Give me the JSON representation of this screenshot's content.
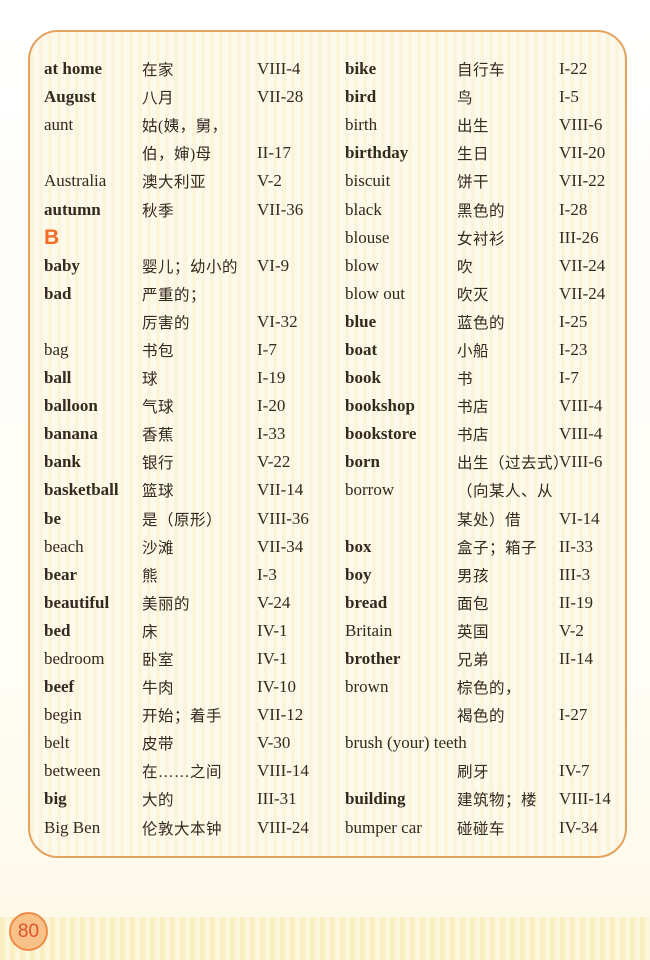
{
  "page": {
    "number": "80"
  },
  "colors": {
    "card_border": "#e2a361",
    "card_background": "#fcf6e3",
    "section_letter": "#f26c27",
    "text": "#332a20",
    "badge_border": "#ec8d49",
    "badge_fill": "#f7c187",
    "badge_text": "#e0532b"
  },
  "glossary": {
    "left_column": {
      "rows": [
        {
          "type": "entry",
          "en": "at home",
          "en_bold": true,
          "zh": "在家",
          "code": "VIII-4"
        },
        {
          "type": "entry",
          "en": "August",
          "en_bold": true,
          "zh": "八月",
          "code": "VII-28"
        },
        {
          "type": "entry",
          "en": "aunt",
          "en_bold": false,
          "zh": "姑(姨，舅，",
          "code": ""
        },
        {
          "type": "entry",
          "en": "",
          "en_bold": false,
          "zh": "伯，婶)母",
          "code": "II-17"
        },
        {
          "type": "entry",
          "en": "Australia",
          "en_bold": false,
          "zh": "澳大利亚",
          "code": "V-2"
        },
        {
          "type": "entry",
          "en": "autumn",
          "en_bold": true,
          "zh": "秋季",
          "code": "VII-36"
        },
        {
          "type": "section",
          "letter": "B"
        },
        {
          "type": "entry",
          "en": "baby",
          "en_bold": true,
          "zh": "婴儿；幼小的",
          "code": "VI-9"
        },
        {
          "type": "entry",
          "en": "bad",
          "en_bold": true,
          "zh": "严重的；",
          "code": ""
        },
        {
          "type": "entry",
          "en": "",
          "en_bold": false,
          "zh": "厉害的",
          "code": "VI-32"
        },
        {
          "type": "entry",
          "en": "bag",
          "en_bold": false,
          "zh": "书包",
          "code": "I-7"
        },
        {
          "type": "entry",
          "en": "ball",
          "en_bold": true,
          "zh": "球",
          "code": "I-19"
        },
        {
          "type": "entry",
          "en": "balloon",
          "en_bold": true,
          "zh": "气球",
          "code": "I-20"
        },
        {
          "type": "entry",
          "en": "banana",
          "en_bold": true,
          "zh": "香蕉",
          "code": "I-33"
        },
        {
          "type": "entry",
          "en": "bank",
          "en_bold": true,
          "zh": "银行",
          "code": "V-22"
        },
        {
          "type": "entry",
          "en": "basketball",
          "en_bold": true,
          "zh": "篮球",
          "code": "VII-14"
        },
        {
          "type": "entry",
          "en": "be",
          "en_bold": true,
          "zh": "是（原形）",
          "code": "VIII-36"
        },
        {
          "type": "entry",
          "en": "beach",
          "en_bold": false,
          "zh": "沙滩",
          "code": "VII-34"
        },
        {
          "type": "entry",
          "en": "bear",
          "en_bold": true,
          "zh": "熊",
          "code": "I-3"
        },
        {
          "type": "entry",
          "en": "beautiful",
          "en_bold": true,
          "zh": "美丽的",
          "code": "V-24"
        },
        {
          "type": "entry",
          "en": "bed",
          "en_bold": true,
          "zh": "床",
          "code": "IV-1"
        },
        {
          "type": "entry",
          "en": "bedroom",
          "en_bold": false,
          "zh": "卧室",
          "code": "IV-1"
        },
        {
          "type": "entry",
          "en": "beef",
          "en_bold": true,
          "zh": "牛肉",
          "code": "IV-10"
        },
        {
          "type": "entry",
          "en": "begin",
          "en_bold": false,
          "zh": "开始；着手",
          "code": "VII-12"
        },
        {
          "type": "entry",
          "en": "belt",
          "en_bold": false,
          "zh": "皮带",
          "code": "V-30"
        },
        {
          "type": "entry",
          "en": "between",
          "en_bold": false,
          "zh": "在……之间",
          "code": "VIII-14"
        },
        {
          "type": "entry",
          "en": "big",
          "en_bold": true,
          "zh": "大的",
          "code": "III-31"
        },
        {
          "type": "entry",
          "en": "Big Ben",
          "en_bold": false,
          "zh": "伦敦大本钟",
          "code": "VIII-24"
        }
      ]
    },
    "right_column": {
      "rows": [
        {
          "type": "entry",
          "en": "bike",
          "en_bold": true,
          "zh": "自行车",
          "code": "I-22"
        },
        {
          "type": "entry",
          "en": "bird",
          "en_bold": true,
          "zh": "鸟",
          "code": "I-5"
        },
        {
          "type": "entry",
          "en": "birth",
          "en_bold": false,
          "zh": "出生",
          "code": "VIII-6"
        },
        {
          "type": "entry",
          "en": "birthday",
          "en_bold": true,
          "zh": "生日",
          "code": "VII-20"
        },
        {
          "type": "entry",
          "en": "biscuit",
          "en_bold": false,
          "zh": "饼干",
          "code": "VII-22"
        },
        {
          "type": "entry",
          "en": "black",
          "en_bold": false,
          "zh": "黑色的",
          "code": "I-28"
        },
        {
          "type": "entry",
          "en": "blouse",
          "en_bold": false,
          "zh": "女衬衫",
          "code": "III-26"
        },
        {
          "type": "entry",
          "en": "blow",
          "en_bold": false,
          "zh": "吹",
          "code": "VII-24"
        },
        {
          "type": "entry",
          "en": "blow out",
          "en_bold": false,
          "zh": "吹灭",
          "code": "VII-24"
        },
        {
          "type": "entry",
          "en": "blue",
          "en_bold": true,
          "zh": "蓝色的",
          "code": "I-25"
        },
        {
          "type": "entry",
          "en": "boat",
          "en_bold": true,
          "zh": "小船",
          "code": "I-23"
        },
        {
          "type": "entry",
          "en": "book",
          "en_bold": true,
          "zh": "书",
          "code": "I-7"
        },
        {
          "type": "entry",
          "en": "bookshop",
          "en_bold": true,
          "zh": "书店",
          "code": "VIII-4"
        },
        {
          "type": "entry",
          "en": "bookstore",
          "en_bold": true,
          "zh": "书店",
          "code": "VIII-4"
        },
        {
          "type": "entry",
          "en": "born",
          "en_bold": true,
          "zh": "出生（过去式）",
          "code": "VIII-6"
        },
        {
          "type": "entry",
          "en": "borrow",
          "en_bold": false,
          "zh": "（向某人、从",
          "code": ""
        },
        {
          "type": "entry",
          "en": "",
          "en_bold": false,
          "zh": "某处）借",
          "code": "VI-14"
        },
        {
          "type": "entry",
          "en": "box",
          "en_bold": true,
          "zh": "盒子；箱子",
          "code": "II-33"
        },
        {
          "type": "entry",
          "en": "boy",
          "en_bold": true,
          "zh": "男孩",
          "code": "III-3"
        },
        {
          "type": "entry",
          "en": "bread",
          "en_bold": true,
          "zh": "面包",
          "code": "II-19"
        },
        {
          "type": "entry",
          "en": "Britain",
          "en_bold": false,
          "zh": "英国",
          "code": "V-2"
        },
        {
          "type": "entry",
          "en": "brother",
          "en_bold": true,
          "zh": "兄弟",
          "code": "II-14"
        },
        {
          "type": "entry",
          "en": "brown",
          "en_bold": false,
          "zh": "棕色的，",
          "code": ""
        },
        {
          "type": "entry",
          "en": "",
          "en_bold": false,
          "zh": "褐色的",
          "code": "I-27"
        },
        {
          "type": "entry",
          "en": "brush (your) teeth",
          "en_bold": false,
          "zh": "",
          "code": ""
        },
        {
          "type": "entry",
          "en": "",
          "en_bold": false,
          "zh": "刷牙",
          "code": "IV-7"
        },
        {
          "type": "entry",
          "en": "building",
          "en_bold": true,
          "zh": "建筑物；楼",
          "code": "VIII-14"
        },
        {
          "type": "entry",
          "en": "bumper car",
          "en_bold": false,
          "zh": "碰碰车",
          "code": "IV-34"
        }
      ]
    }
  }
}
